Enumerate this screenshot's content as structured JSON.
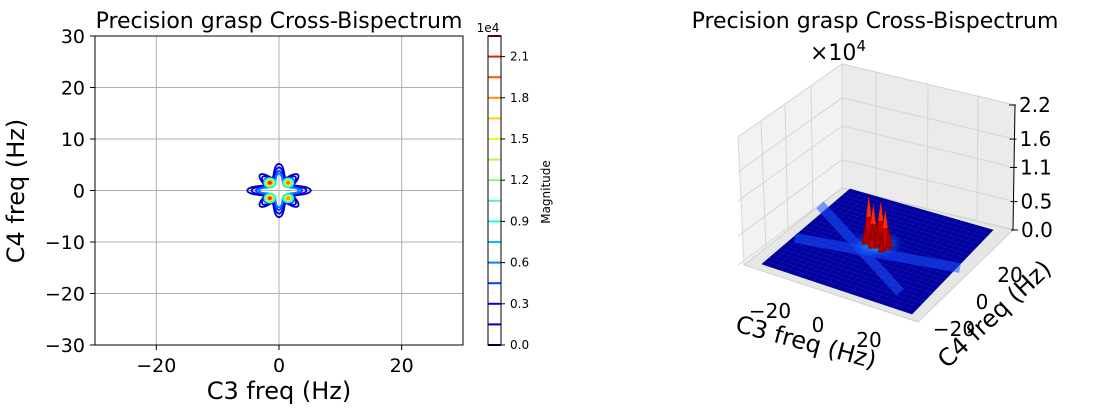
{
  "chart_data": [
    {
      "type": "contour",
      "title": "Precision grasp Cross-Bispectrum",
      "xlabel": "C3 freq (Hz)",
      "ylabel": "C4 freq (Hz)",
      "xlim": [
        -30,
        30
      ],
      "ylim": [
        -30,
        30
      ],
      "x_ticks": [
        -20,
        0,
        20
      ],
      "x_tick_labels": [
        "−20",
        "0",
        "20"
      ],
      "y_ticks": [
        -30,
        -20,
        -10,
        0,
        10,
        20,
        30
      ],
      "y_tick_labels": [
        "−30",
        "−20",
        "−10",
        "0",
        "10",
        "20",
        "30"
      ],
      "grid": true,
      "colorbar": {
        "label": "Magnitude",
        "exponent_label": "1e4",
        "levels": [
          0.0,
          0.15,
          0.3,
          0.45,
          0.6,
          0.75,
          0.9,
          1.05,
          1.2,
          1.35,
          1.5,
          1.65,
          1.8,
          1.95,
          2.1,
          2.25
        ],
        "level_colors": [
          "#00007f",
          "#0000b8",
          "#0000f5",
          "#0040ff",
          "#0080ff",
          "#00c0ff",
          "#16ffe1",
          "#49ffad",
          "#7dff7a",
          "#b0ff46",
          "#e4ff13",
          "#ffd000",
          "#ff9400",
          "#ff5900",
          "#f21d00",
          "#b20000"
        ],
        "tick_values": [
          0.0,
          0.3,
          0.6,
          0.9,
          1.2,
          1.5,
          1.8,
          2.1
        ],
        "tick_labels": [
          "0.0",
          "0.3",
          "0.6",
          "0.9",
          "1.2",
          "1.5",
          "1.8",
          "2.1"
        ]
      },
      "peaks": [
        {
          "x": -1.5,
          "y": 1.5,
          "z": 2.2
        },
        {
          "x": 1.5,
          "y": 1.5,
          "z": 2.0
        },
        {
          "x": -1.5,
          "y": -1.5,
          "z": 2.1
        },
        {
          "x": 1.5,
          "y": -1.5,
          "z": 1.9
        }
      ],
      "z_unit_multiplier": 10000
    },
    {
      "type": "surface3d",
      "title": "Precision grasp Cross-Bispectrum",
      "zscale_label": "×10",
      "zscale_exponent": "4",
      "xlabel": "C3 freq (Hz)",
      "ylabel": "C4 freq (Hz)",
      "x_tick_labels": [
        "−20",
        "0",
        "20"
      ],
      "y_tick_labels": [
        "−20",
        "0",
        "20"
      ],
      "z_tick_labels": [
        "0.0",
        "0.5",
        "1.1",
        "1.6",
        "2.2"
      ],
      "zlim": [
        0,
        2.2
      ],
      "colormap": "jet"
    }
  ]
}
